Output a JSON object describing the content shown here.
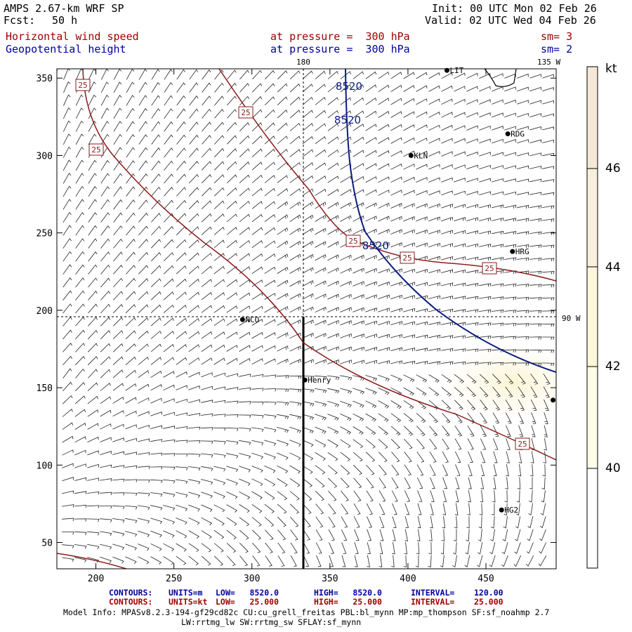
{
  "header": {
    "model_title": "AMPS 2.67-km WRF SP",
    "forecast_label": "Fcst:",
    "forecast_hours": "50 h",
    "init_text": "Init: 00 UTC Mon 02 Feb 26",
    "valid_text": "Valid: 02 UTC Wed 04 Feb 26",
    "field1_name": "Horizontal wind speed",
    "field1_pressure": "at pressure =  300 hPa",
    "field1_sm": "sm= 3",
    "field2_name": "Geopotential height",
    "field2_pressure": "at pressure =  300 hPa",
    "field2_sm": "sm= 2"
  },
  "map": {
    "x_ticks": [
      "200",
      "250",
      "300",
      "350",
      "400",
      "450"
    ],
    "y_ticks": [
      "50",
      "100",
      "150",
      "200",
      "250",
      "300",
      "350"
    ],
    "meridian_top": "180",
    "meridian_top_right": "135 W",
    "meridian_right": "90 W",
    "stations": [
      {
        "label": "LIT",
        "x": 425,
        "y": 355
      },
      {
        "label": "RDG",
        "x": 464,
        "y": 314
      },
      {
        "label": "KLN",
        "x": 402,
        "y": 300
      },
      {
        "label": "HRG",
        "x": 467,
        "y": 238
      },
      {
        "label": "NCO",
        "x": 294,
        "y": 194
      },
      {
        "label": "Henry",
        "x": 334,
        "y": 155
      },
      {
        "label": "",
        "x": 493,
        "y": 142
      },
      {
        "label": "HG2",
        "x": 460,
        "y": 71
      }
    ],
    "height_contour_label": "8520",
    "speed_contour_label": "25",
    "colorbar": {
      "unit": "kt",
      "labels": [
        "46",
        "44",
        "42",
        "40"
      ]
    }
  },
  "footer": {
    "contours1_prefix": "CONTOURS:",
    "contours1_units": "UNITS=m",
    "contours1_low": "LOW=   8520.0",
    "contours1_high": "HIGH=   8520.0",
    "contours1_interval": "INTERVAL=    120.00",
    "contours2_prefix": "CONTOURS:",
    "contours2_units": "UNITS=kt",
    "contours2_low": "LOW=   25.000",
    "contours2_high": "HIGH=   25.000",
    "contours2_interval": "INTERVAL=    25.000",
    "model_info_line1": "Model Info: MPASv8.2.3-194-gf29cd82c CU:cu_grell_freitas PBL:bl_mynn MP:mp_thompson SF:sf_noahmp 2.7",
    "model_info_line2": "LW:rrtmg_lw SW:rrtmg_sw SFLAY:sf_mynn"
  }
}
